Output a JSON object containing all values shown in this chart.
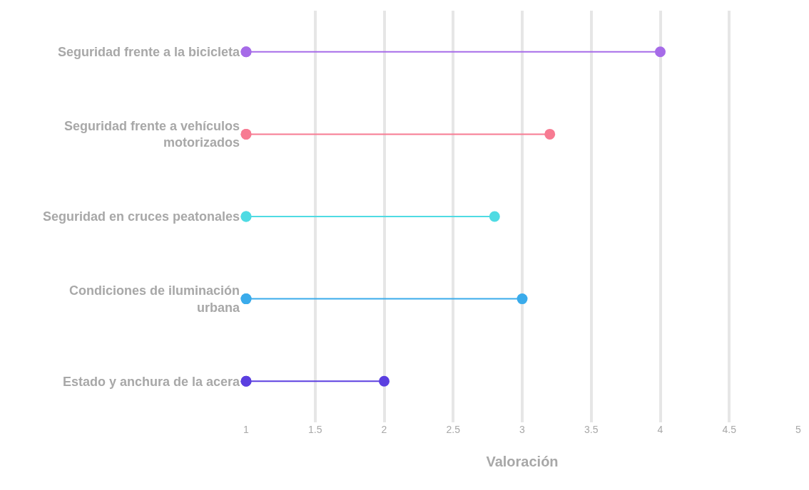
{
  "chart_data": {
    "type": "lollipop",
    "orientation": "horizontal",
    "categories": [
      "Seguridad frente a la bicicleta",
      "Seguridad frente a vehículos motorizados",
      "Seguridad en cruces peatonales",
      "Condiciones de iluminación urbana",
      "Estado y anchura de la acera"
    ],
    "series": [
      {
        "values": [
          4,
          3.2,
          2.8,
          3,
          2
        ],
        "colors": [
          "#a66be8",
          "#f77b92",
          "#4fdbe3",
          "#3aabeb",
          "#5b3fe0"
        ]
      },
      {
        "type": "scatter",
        "values": [
          1,
          1,
          1,
          1,
          1
        ],
        "colors": [
          "#a66be8",
          "#f77b92",
          "#4fdbe3",
          "#3aabeb",
          "#5b3fe0"
        ]
      }
    ],
    "xlabel": "Valoración",
    "xlim": [
      1,
      5
    ],
    "xticks": [
      1,
      1.5,
      2,
      2.5,
      3,
      3.5,
      4,
      4.5,
      5
    ],
    "grid": "x",
    "legend": false,
    "marker": "circle"
  }
}
